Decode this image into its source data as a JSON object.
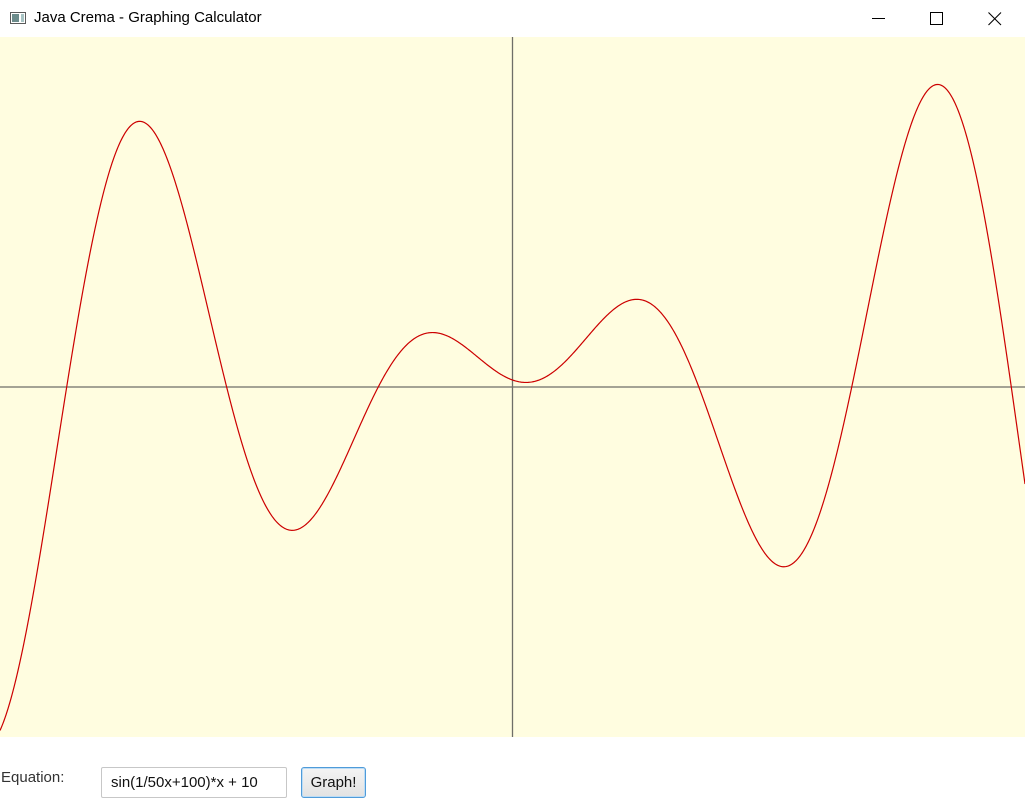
{
  "window": {
    "title": "Java Crema - Graphing Calculator",
    "icon": "java-app-icon",
    "controls": {
      "minimize_icon": "minimize-icon",
      "maximize_icon": "maximize-icon",
      "close_icon": "close-icon"
    }
  },
  "colors": {
    "plot_background": "#fffde0",
    "axis": "#6e6e68",
    "curve": "#cc0000",
    "window_background": "#ffffff"
  },
  "form": {
    "equation_label": "Equation:",
    "equation_value": "sin(1/50x+100)*x + 10",
    "graph_button_label": "Graph!"
  },
  "plot": {
    "equation": "sin(1/50x+100)*x + 10"
  }
}
